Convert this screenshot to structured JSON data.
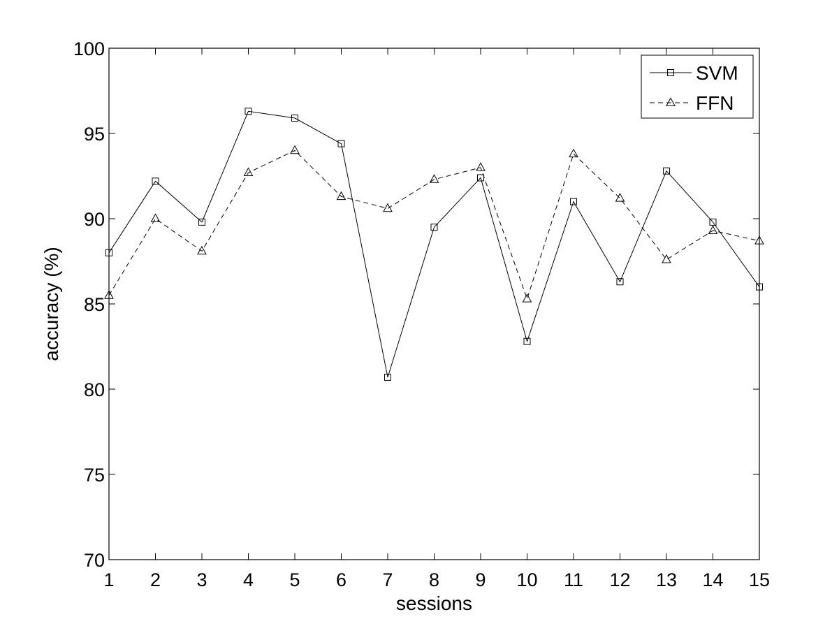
{
  "chart_data": {
    "type": "line",
    "title": "",
    "xlabel": "sessions",
    "ylabel": "accuracy (%)",
    "x": [
      1,
      2,
      3,
      4,
      5,
      6,
      7,
      8,
      9,
      10,
      11,
      12,
      13,
      14,
      15
    ],
    "xlim": [
      1,
      15
    ],
    "ylim": [
      70,
      100
    ],
    "x_ticks": [
      1,
      2,
      3,
      4,
      5,
      6,
      7,
      8,
      9,
      10,
      11,
      12,
      13,
      14,
      15
    ],
    "y_ticks": [
      70,
      75,
      80,
      85,
      90,
      95,
      100
    ],
    "grid": false,
    "legend_position": "top-right",
    "series": [
      {
        "name": "SVM",
        "line_style": "solid",
        "marker": "square",
        "color": "#000000",
        "values": [
          88.0,
          92.2,
          89.8,
          96.3,
          95.9,
          94.4,
          80.7,
          89.5,
          92.4,
          82.8,
          91.0,
          86.3,
          92.8,
          89.8,
          86.0
        ]
      },
      {
        "name": "FFN",
        "line_style": "dashed",
        "marker": "triangle",
        "color": "#000000",
        "values": [
          85.5,
          90.0,
          88.1,
          92.7,
          94.0,
          91.3,
          90.6,
          92.3,
          93.0,
          85.3,
          93.8,
          91.2,
          87.6,
          89.3,
          88.7
        ]
      }
    ]
  }
}
